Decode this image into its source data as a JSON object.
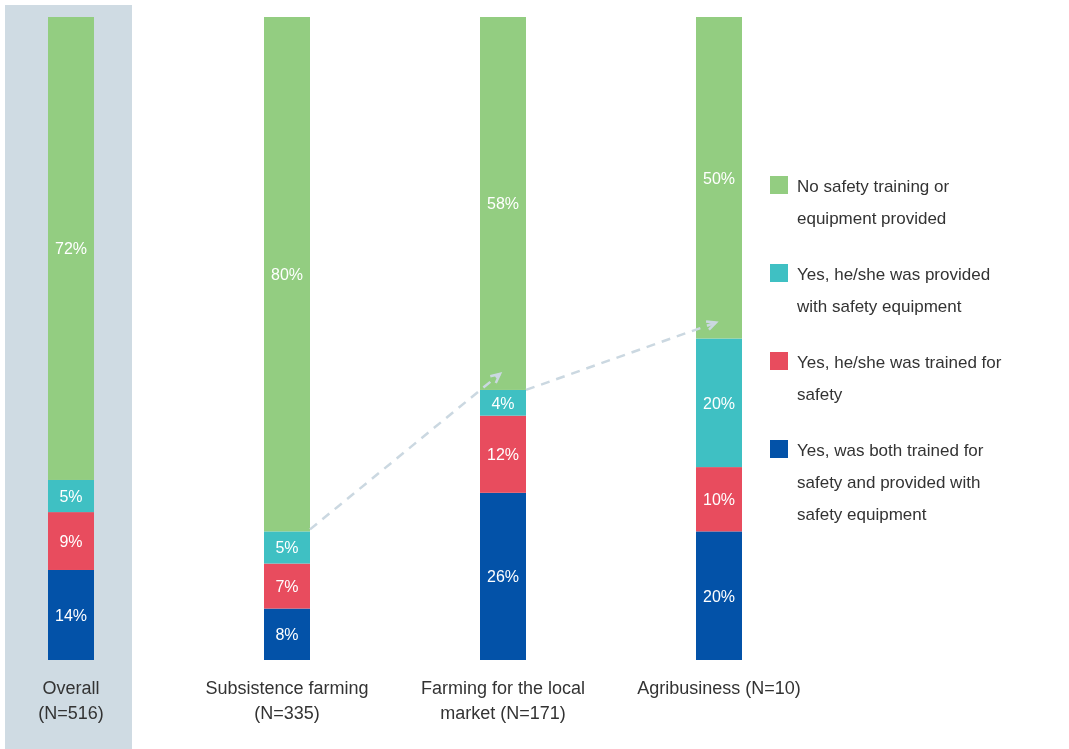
{
  "chart_data": {
    "type": "bar",
    "stacked": true,
    "legend": "right",
    "tick_labels": "x",
    "categories": [
      "Overall (N=516)",
      "Subsistence farming (N=335)",
      "Farming for the local market (N=171)",
      "Agribusiness (N=10)"
    ],
    "series": [
      {
        "name": "Yes, was both trained for safety and provided with safety equipment",
        "color": "#0352a8",
        "values": [
          14,
          8,
          26,
          20
        ],
        "value_labels": [
          "14%",
          "8%",
          "26%",
          "20%"
        ]
      },
      {
        "name": "Yes, he/she was trained for safety",
        "color": "#e84c5e",
        "values": [
          9,
          7,
          12,
          10
        ],
        "value_labels": [
          "9%",
          "7%",
          "12%",
          "10%"
        ]
      },
      {
        "name": "Yes, he/she was provided with safety equipment",
        "color": "#3fc0c3",
        "values": [
          5,
          5,
          4,
          20
        ],
        "value_labels": [
          "5%",
          "5%",
          "4%",
          "20%"
        ]
      },
      {
        "name": "No safety training or equipment provided",
        "color": "#93cd81",
        "values": [
          72,
          80,
          58,
          50
        ],
        "value_labels": [
          "72%",
          "80%",
          "58%",
          "50%"
        ]
      }
    ],
    "bands": [
      {
        "axis": "x",
        "from": "Overall (N=516)",
        "to": "Overall (N=516)",
        "color": "#cfdbe3"
      }
    ]
  }
}
